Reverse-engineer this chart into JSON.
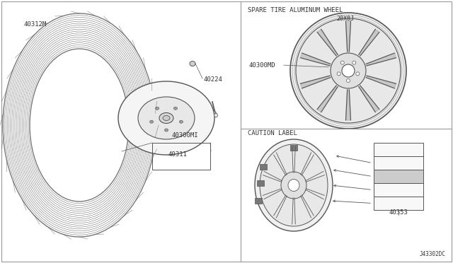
{
  "bg_color": "#ffffff",
  "border_color": "#999999",
  "line_color": "#555555",
  "text_color": "#333333",
  "labels": {
    "spare_tire": "SPARE TIRE ALUMINUM WHEEL",
    "caution": "CAUTION LABEL",
    "part_20x8j": "20X8J",
    "part_40300md_right": "40300MD",
    "part_40300mi": "40300MI",
    "part_40311": "40311",
    "part_40224": "40224",
    "part_40312m": "40312M",
    "part_40353": "40353",
    "doc_id": "J43302DC"
  },
  "font_size_small": 6.5,
  "font_size_tiny": 5.5
}
